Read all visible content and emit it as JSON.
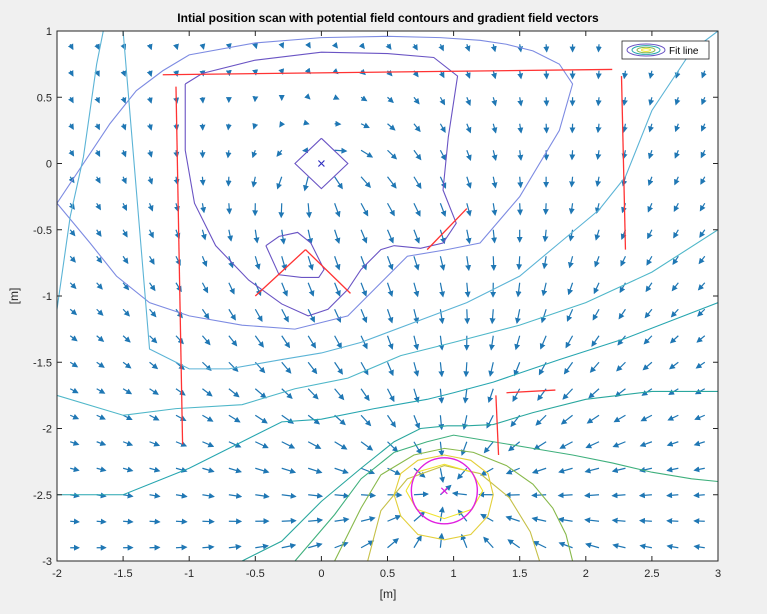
{
  "chart_data": {
    "type": "contour",
    "title": "Intial position scan with potential field contours and gradient field vectors",
    "xlabel": "[m]",
    "ylabel": "[m]",
    "xlim": [
      -2,
      3
    ],
    "ylim": [
      -3,
      1
    ],
    "xticks": [
      "-2",
      "-1.5",
      "-1",
      "-0.5",
      "0",
      "0.5",
      "1",
      "1.5",
      "2",
      "2.5",
      "3"
    ],
    "yticks": [
      "1",
      "0.5",
      "0",
      "-0.5",
      "-1",
      "-1.5",
      "-2",
      "-2.5",
      "-3"
    ],
    "legend": {
      "position": "top-right",
      "entries": [
        "Fit line"
      ]
    },
    "grid": false,
    "colors": {
      "fit_lines": "#ff3333",
      "arrows": "#1f77b4",
      "start_marker": "#3030c0",
      "goal_marker": "#e020e0"
    },
    "start": {
      "x": 0,
      "y": 0
    },
    "goal": {
      "x": 0.93,
      "y": -2.47
    },
    "fit_lines": [
      {
        "x": [
          -1.2,
          2.2
        ],
        "y": [
          0.67,
          0.71
        ]
      },
      {
        "x": [
          -1.1,
          -1.05
        ],
        "y": [
          0.58,
          -2.12
        ]
      },
      {
        "x": [
          2.27,
          2.3
        ],
        "y": [
          0.66,
          -0.65
        ]
      },
      {
        "x": [
          -0.5,
          -0.12
        ],
        "y": [
          -1.0,
          -0.65
        ]
      },
      {
        "x": [
          -0.12,
          0.22
        ],
        "y": [
          -0.65,
          -0.98
        ]
      },
      {
        "x": [
          0.8,
          1.1
        ],
        "y": [
          -0.65,
          -0.34
        ]
      },
      {
        "x": [
          1.32,
          1.34
        ],
        "y": [
          -1.75,
          -2.2
        ]
      },
      {
        "x": [
          1.4,
          1.77
        ],
        "y": [
          -1.73,
          -1.71
        ]
      }
    ],
    "contours": [
      {
        "color": "#6a54c4",
        "x": [
          -1.03,
          -0.9,
          -0.5,
          0,
          0.5,
          0.85,
          1.03,
          0.96,
          0.92,
          1.02,
          0.92,
          0.75,
          0.55,
          0.45,
          0.3,
          0.2,
          0.05,
          -0.1,
          -0.3,
          -0.55,
          -0.8,
          -0.96,
          -1.03,
          -1.03
        ],
        "y": [
          0.6,
          0.68,
          0.78,
          0.84,
          0.83,
          0.8,
          0.66,
          0.2,
          -0.2,
          -0.45,
          -0.6,
          -0.64,
          -0.62,
          -0.65,
          -0.8,
          -0.95,
          -1.1,
          -1.15,
          -1.06,
          -0.88,
          -0.62,
          -0.3,
          0.1,
          0.6
        ]
      },
      {
        "color": "#6a54c4",
        "x": [
          -0.42,
          -0.32,
          -0.18,
          -0.08,
          0.02,
          -0.02,
          -0.15,
          -0.32,
          -0.42
        ],
        "y": [
          -0.62,
          -0.55,
          -0.52,
          -0.6,
          -0.8,
          -0.86,
          -0.86,
          -0.84,
          -0.62
        ]
      },
      {
        "color": "#6a54c4",
        "x": [
          0,
          0.2,
          0,
          -0.2,
          0
        ],
        "y": [
          0.19,
          0,
          -0.19,
          0,
          0.19
        ]
      },
      {
        "color": "#7d8be2",
        "x": [
          -2,
          -1.6,
          -1.4,
          -1.2,
          -1.0,
          -0.5,
          0,
          0.5,
          0.9,
          1.2,
          1.4,
          1.6,
          1.8,
          1.9,
          1.8,
          1.5,
          1.2,
          0.95
        ],
        "y": [
          -0.3,
          0.3,
          0.55,
          0.7,
          0.82,
          0.91,
          0.95,
          0.96,
          0.95,
          0.93,
          0.9,
          0.85,
          0.75,
          0.6,
          0.25,
          -0.25,
          -0.6,
          -0.65
        ]
      },
      {
        "color": "#7d8be2",
        "x": [
          0.95,
          0.65,
          0.45,
          0.2,
          -0.2,
          -0.6,
          -1.0,
          -1.3,
          -1.55,
          -1.75,
          -2.0
        ],
        "y": [
          -0.65,
          -0.7,
          -0.9,
          -1.15,
          -1.25,
          -1.22,
          -1.15,
          -1.05,
          -0.85,
          -0.6,
          -0.3
        ]
      },
      {
        "color": "#5cb4d6",
        "x": [
          -2,
          -1.9,
          -1.8,
          -1.75,
          -1.7,
          -1.65,
          -1.5,
          -1.3,
          -1.0,
          -0.7,
          -0.3,
          0,
          0.3,
          0.7,
          1.1,
          1.5,
          1.8,
          2.1,
          2.3,
          2.5,
          2.8,
          3.0
        ],
        "y": [
          -1.1,
          -0.4,
          0.05,
          0.4,
          0.75,
          1.0,
          1.0,
          -1.4,
          -1.55,
          -1.55,
          -1.48,
          -1.43,
          -1.35,
          -1.2,
          -1.05,
          -0.85,
          -0.6,
          -0.35,
          -0.1,
          0.4,
          0.85,
          1.0
        ]
      },
      {
        "color": "#4fb7c9",
        "x": [
          -2,
          -1.5,
          -1.1,
          -0.6,
          -0.2,
          0.2,
          0.6,
          1.0,
          1.5,
          2.0,
          2.5,
          3.0
        ],
        "y": [
          -1.75,
          -1.9,
          -1.85,
          -1.82,
          -1.7,
          -1.62,
          -1.45,
          -1.35,
          -1.22,
          -1.05,
          -0.82,
          -0.5
        ]
      },
      {
        "color": "#27a6b0",
        "x": [
          -2,
          -1.5,
          -1.0,
          -0.6,
          -0.3,
          0,
          0.4,
          0.8,
          1.0,
          1.3,
          1.8,
          2.3,
          3.0
        ],
        "y": [
          -2.5,
          -2.5,
          -2.3,
          -2.1,
          -1.95,
          -1.93,
          -1.85,
          -1.78,
          -1.73,
          -1.65,
          -1.48,
          -1.32,
          -1.05
        ]
      },
      {
        "color": "#2aa79e",
        "x": [
          -0.6,
          -0.3,
          0,
          0.3,
          0.55,
          0.75,
          0.95,
          1.1,
          1.3,
          1.6,
          2.0,
          2.5,
          3.0
        ],
        "y": [
          -3.0,
          -2.85,
          -2.55,
          -2.3,
          -2.1,
          -2.0,
          -1.98,
          -1.98,
          -1.97,
          -1.88,
          -1.78,
          -1.72,
          -1.72
        ]
      },
      {
        "color": "#3fb07d",
        "x": [
          -0.2,
          0.1,
          0.3,
          0.55,
          0.8,
          1.0,
          1.3,
          1.6,
          1.9,
          2.2,
          2.5,
          2.8,
          3.0
        ],
        "y": [
          -3.0,
          -2.65,
          -2.38,
          -2.18,
          -2.1,
          -2.05,
          -2.1,
          -2.15,
          -2.2,
          -2.26,
          -2.33,
          -2.38,
          -2.4
        ]
      },
      {
        "color": "#88b94b",
        "x": [
          0.1,
          0.3,
          0.45,
          0.7,
          0.93,
          1.15,
          1.4,
          1.6,
          1.75,
          1.85,
          1.9
        ],
        "y": [
          -3.0,
          -2.6,
          -2.35,
          -2.2,
          -2.15,
          -2.18,
          -2.28,
          -2.42,
          -2.6,
          -2.8,
          -3.0
        ]
      },
      {
        "color": "#c6c048",
        "x": [
          0.35,
          0.45,
          0.65,
          0.93,
          1.2,
          1.42,
          1.58,
          1.65
        ],
        "y": [
          -3.0,
          -2.62,
          -2.38,
          -2.28,
          -2.34,
          -2.52,
          -2.78,
          -3.0
        ]
      },
      {
        "color": "#e3cf3a",
        "x": [
          0.55,
          0.6,
          0.73,
          0.93,
          1.13,
          1.26,
          1.3,
          1.26,
          1.13,
          0.93,
          0.73,
          0.6,
          0.55
        ],
        "y": [
          -2.5,
          -2.66,
          -2.8,
          -2.84,
          -2.8,
          -2.66,
          -2.5,
          -2.34,
          -2.24,
          -2.2,
          -2.24,
          -2.34,
          -2.5
        ]
      },
      {
        "color": "#f0e42a",
        "x": [
          0.64,
          0.72,
          0.93,
          1.14,
          1.22,
          1.14,
          0.93,
          0.72,
          0.64
        ],
        "y": [
          -2.47,
          -2.61,
          -2.68,
          -2.61,
          -2.47,
          -2.33,
          -2.27,
          -2.33,
          -2.47
        ]
      }
    ]
  }
}
